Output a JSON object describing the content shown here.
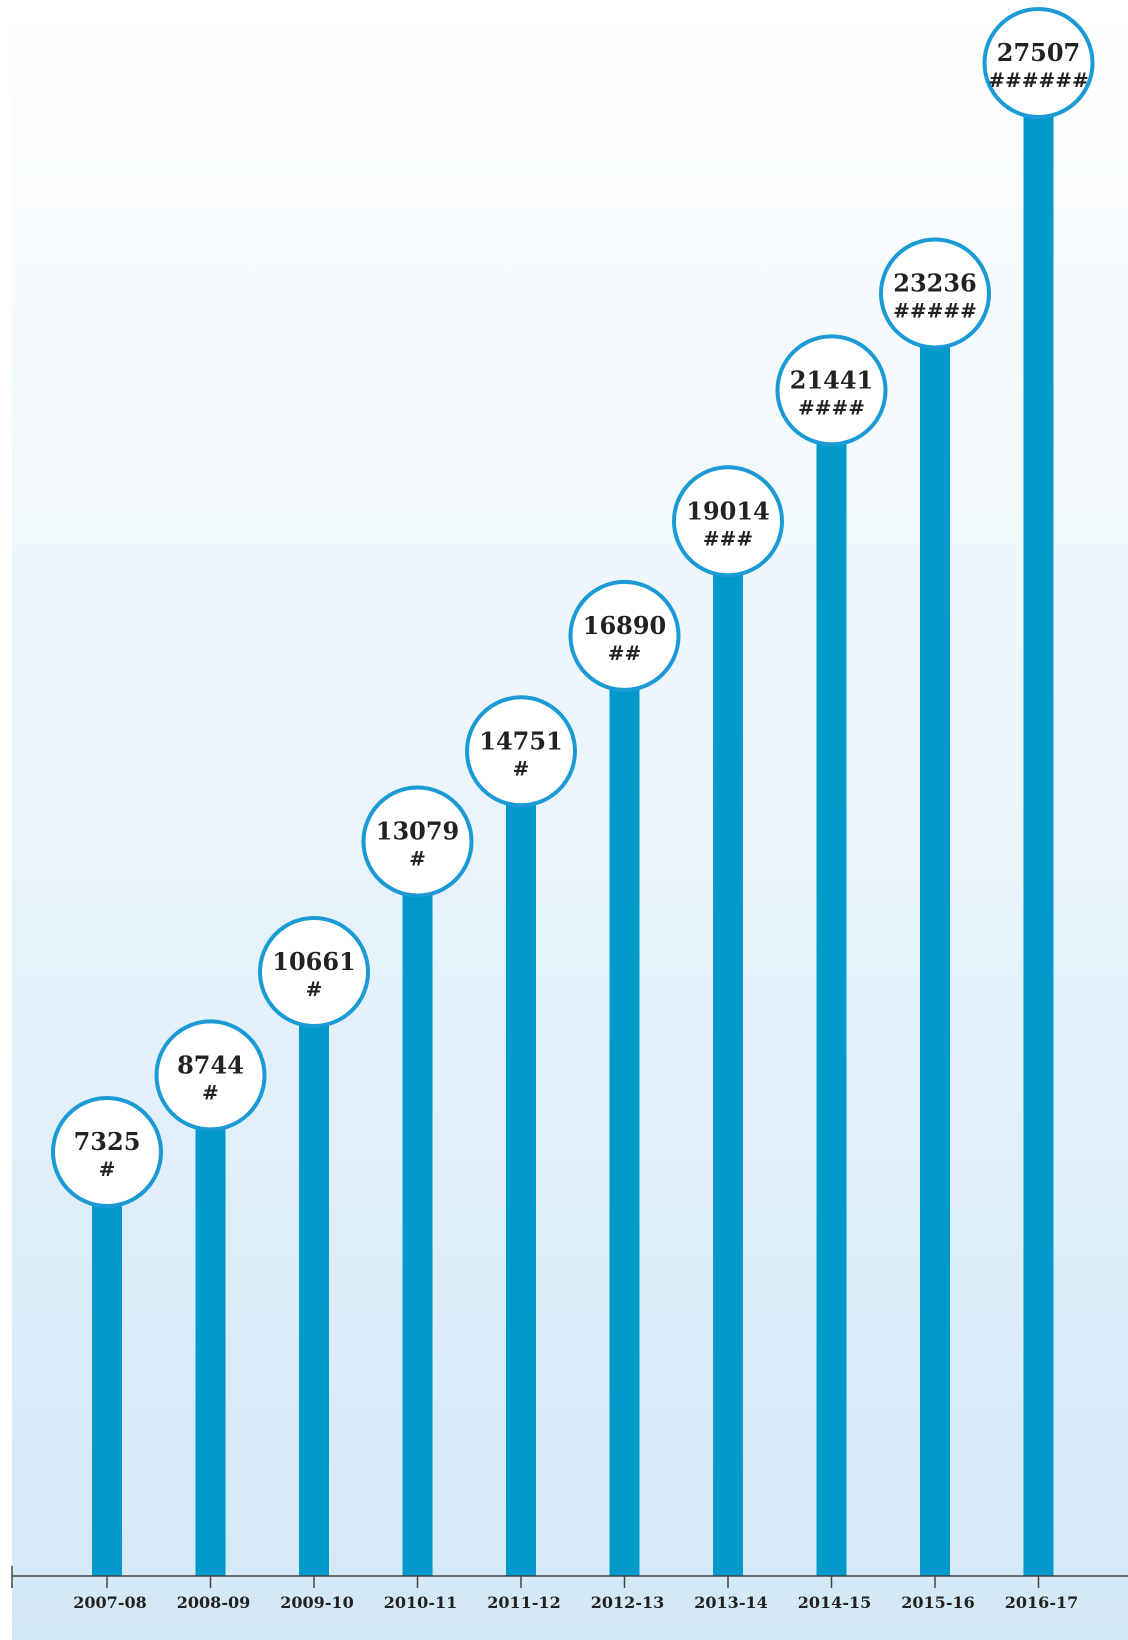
{
  "chart_data": {
    "type": "bar",
    "categories": [
      "2007-08",
      "2008-09",
      "2009-10",
      "2010-11",
      "2011-12",
      "2012-13",
      "2013-14",
      "2014-15",
      "2015-16",
      "2016-17"
    ],
    "values": [
      7325,
      8744,
      10661,
      13079,
      14751,
      16890,
      19014,
      21441,
      23236,
      27507
    ],
    "markers": [
      "#",
      "#",
      "#",
      "#",
      "#",
      "##",
      "###",
      "####",
      "#####",
      "######"
    ],
    "ylim": [
      0,
      27507
    ],
    "grid": false,
    "legend": "none",
    "colors": {
      "bar": "#0099cc",
      "circle_stroke": "#1b9ad6",
      "circle_fill": "#ffffff",
      "background_top": "#ffffff",
      "background_bottom": "#d3e8f6",
      "axis": "#444444",
      "text": "#222222"
    }
  }
}
